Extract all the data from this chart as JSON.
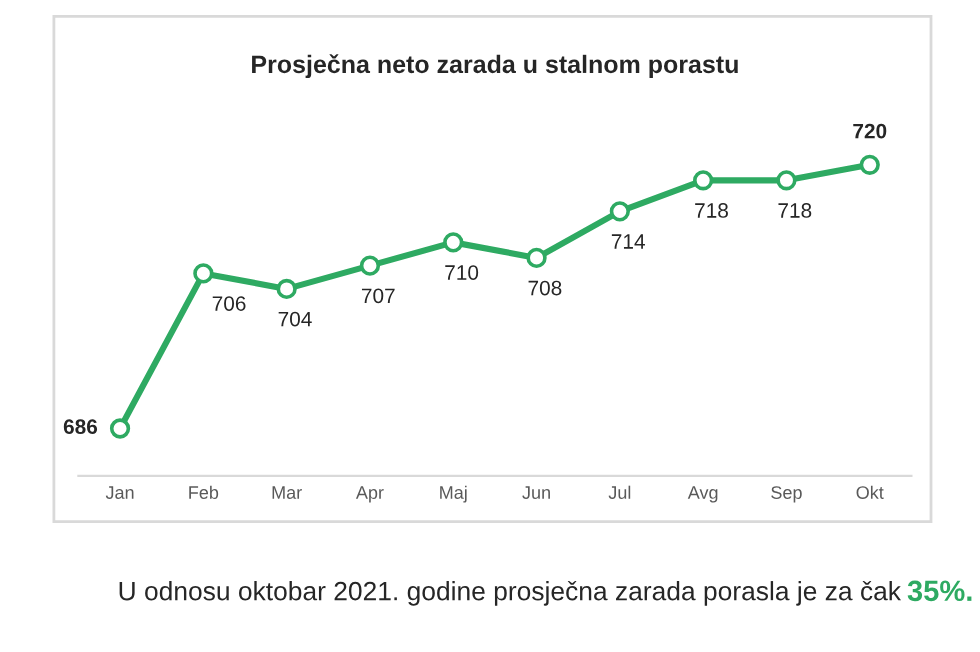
{
  "chart_data": {
    "type": "line",
    "title": "Prosječna neto zarada u stalnom porastu",
    "categories": [
      "Jan",
      "Feb",
      "Mar",
      "Apr",
      "Maj",
      "Jun",
      "Jul",
      "Avg",
      "Sep",
      "Okt"
    ],
    "series": [
      {
        "color": "#2eaa62",
        "values": [
          686,
          706,
          704,
          707,
          710,
          708,
          714,
          718,
          718,
          720
        ]
      }
    ],
    "data_labels": true,
    "marker": "circle",
    "line_style": "solid",
    "grid": false,
    "legend": false,
    "tick_labels": "x",
    "annotations": [
      "U odnosu oktobar 2021. godine prosječna zarada porasla je za čak",
      "35%."
    ]
  }
}
